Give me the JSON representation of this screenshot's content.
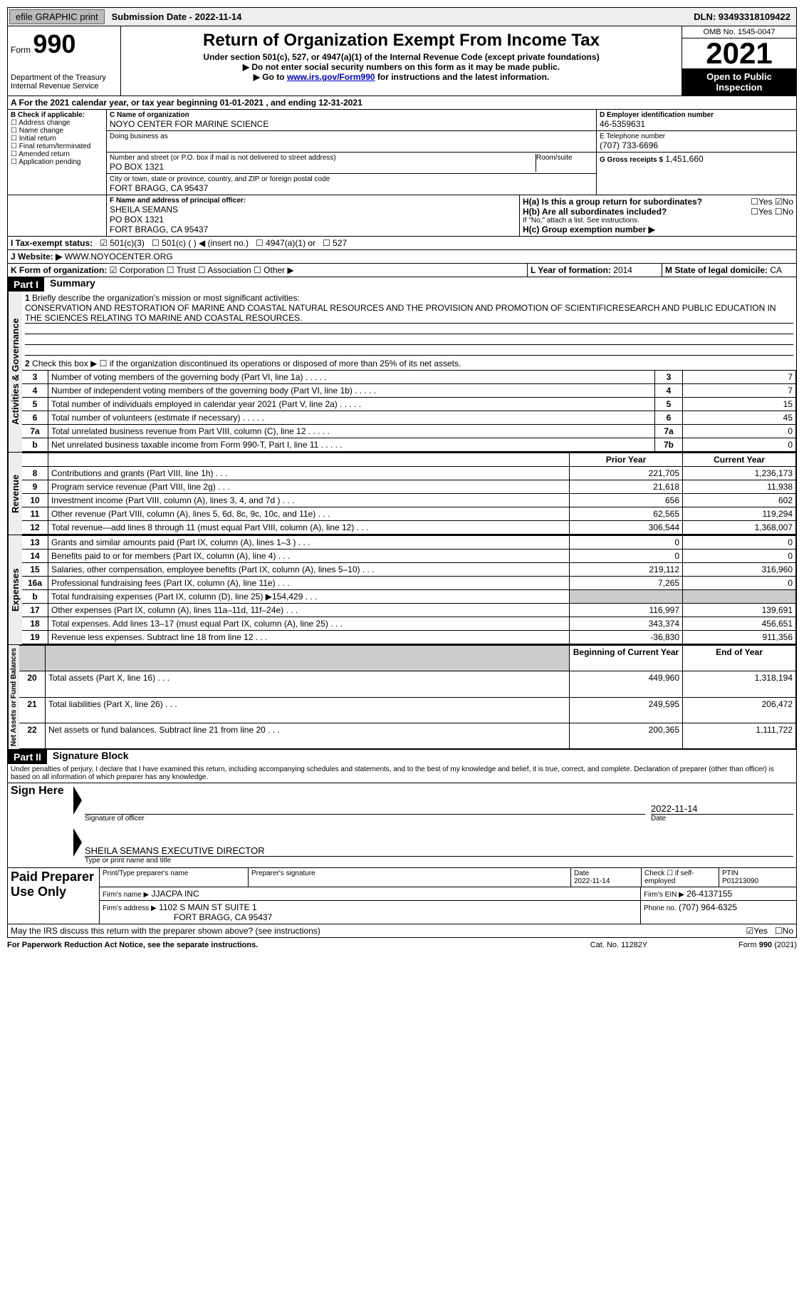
{
  "topbar": {
    "efile": "efile GRAPHIC print",
    "submission": "Submission Date - 2022-11-14",
    "dln": "DLN: 93493318109422"
  },
  "header": {
    "form_label": "Form",
    "form_num": "990",
    "dept": "Department of the Treasury\nInternal Revenue Service",
    "title": "Return of Organization Exempt From Income Tax",
    "sub1": "Under section 501(c), 527, or 4947(a)(1) of the Internal Revenue Code (except private foundations)",
    "sub2": "▶ Do not enter social security numbers on this form as it may be made public.",
    "sub3_pre": "▶ Go to ",
    "sub3_link": "www.irs.gov/Form990",
    "sub3_post": " for instructions and the latest information.",
    "omb": "OMB No. 1545-0047",
    "year": "2021",
    "open": "Open to Public Inspection"
  },
  "a": {
    "line": "A For the 2021 calendar year, or tax year beginning 01-01-2021    , and ending 12-31-2021"
  },
  "b": {
    "label": "B Check if applicable:",
    "opts": [
      "Address change",
      "Name change",
      "Initial return",
      "Final return/terminated",
      "Amended return",
      "Application pending"
    ]
  },
  "c": {
    "name_label": "C Name of organization",
    "name": "NOYO CENTER FOR MARINE SCIENCE",
    "dba_label": "Doing business as",
    "street_label": "Number and street (or P.O. box if mail is not delivered to street address)",
    "room_label": "Room/suite",
    "street": "PO BOX 1321",
    "city_label": "City or town, state or province, country, and ZIP or foreign postal code",
    "city": "FORT BRAGG, CA  95437"
  },
  "d": {
    "label": "D Employer identification number",
    "val": "46-5359631"
  },
  "e": {
    "label": "E Telephone number",
    "val": "(707) 733-6696"
  },
  "g": {
    "label": "G Gross receipts $",
    "val": "1,451,660"
  },
  "f": {
    "label": "F Name and address of principal officer:",
    "name": "SHEILA SEMANS",
    "street": "PO BOX 1321",
    "city": "FORT BRAGG, CA  95437"
  },
  "h": {
    "a": "H(a)  Is this a group return for subordinates?",
    "b": "H(b)  Are all subordinates included?",
    "note": "If \"No,\" attach a list. See instructions.",
    "c": "H(c)  Group exemption number ▶"
  },
  "i": {
    "label": "I    Tax-exempt status:",
    "o1": "501(c)(3)",
    "o2": "501(c) (  ) ◀ (insert no.)",
    "o3": "4947(a)(1) or",
    "o4": "527"
  },
  "j": {
    "label": "J    Website: ▶",
    "val": "WWW.NOYOCENTER.ORG"
  },
  "k": {
    "label": "K Form of organization:",
    "o1": "Corporation",
    "o2": "Trust",
    "o3": "Association",
    "o4": "Other ▶"
  },
  "l": {
    "label": "L Year of formation:",
    "val": "2014"
  },
  "m": {
    "label": "M State of legal domicile:",
    "val": "CA"
  },
  "part1": {
    "hdr": "Part I",
    "title": "Summary",
    "q1": "Briefly describe the organization's mission or most significant activities:",
    "mission": "CONSERVATION AND RESTORATION OF MARINE AND COASTAL NATURAL RESOURCES AND THE PROVISION AND PROMOTION OF SCIENTIFICRESEARCH AND PUBLIC EDUCATION IN THE SCIENCES RELATING TO MARINE AND COASTAL RESOURCES.",
    "q2": "Check this box ▶ ☐ if the organization discontinued its operations or disposed of more than 25% of its net assets.",
    "vlabels": {
      "gov": "Activities & Governance",
      "rev": "Revenue",
      "exp": "Expenses",
      "net": "Net Assets or Fund Balances"
    },
    "lines_gov": [
      {
        "n": "3",
        "d": "Number of voting members of the governing body (Part VI, line 1a)",
        "box": "3",
        "v": "7"
      },
      {
        "n": "4",
        "d": "Number of independent voting members of the governing body (Part VI, line 1b)",
        "box": "4",
        "v": "7"
      },
      {
        "n": "5",
        "d": "Total number of individuals employed in calendar year 2021 (Part V, line 2a)",
        "box": "5",
        "v": "15"
      },
      {
        "n": "6",
        "d": "Total number of volunteers (estimate if necessary)",
        "box": "6",
        "v": "45"
      },
      {
        "n": "7a",
        "d": "Total unrelated business revenue from Part VIII, column (C), line 12",
        "box": "7a",
        "v": "0"
      },
      {
        "n": "b",
        "d": "Net unrelated business taxable income from Form 990-T, Part I, line 11",
        "box": "7b",
        "v": "0"
      }
    ],
    "col_hdrs": {
      "py": "Prior Year",
      "cy": "Current Year",
      "boy": "Beginning of Current Year",
      "eoy": "End of Year"
    },
    "lines_rev": [
      {
        "n": "8",
        "d": "Contributions and grants (Part VIII, line 1h)",
        "py": "221,705",
        "cy": "1,236,173"
      },
      {
        "n": "9",
        "d": "Program service revenue (Part VIII, line 2g)",
        "py": "21,618",
        "cy": "11,938"
      },
      {
        "n": "10",
        "d": "Investment income (Part VIII, column (A), lines 3, 4, and 7d )",
        "py": "656",
        "cy": "602"
      },
      {
        "n": "11",
        "d": "Other revenue (Part VIII, column (A), lines 5, 6d, 8c, 9c, 10c, and 11e)",
        "py": "62,565",
        "cy": "119,294"
      },
      {
        "n": "12",
        "d": "Total revenue—add lines 8 through 11 (must equal Part VIII, column (A), line 12)",
        "py": "306,544",
        "cy": "1,368,007"
      }
    ],
    "lines_exp": [
      {
        "n": "13",
        "d": "Grants and similar amounts paid (Part IX, column (A), lines 1–3 )",
        "py": "0",
        "cy": "0"
      },
      {
        "n": "14",
        "d": "Benefits paid to or for members (Part IX, column (A), line 4)",
        "py": "0",
        "cy": "0"
      },
      {
        "n": "15",
        "d": "Salaries, other compensation, employee benefits (Part IX, column (A), lines 5–10)",
        "py": "219,112",
        "cy": "316,960"
      },
      {
        "n": "16a",
        "d": "Professional fundraising fees (Part IX, column (A), line 11e)",
        "py": "7,265",
        "cy": "0"
      },
      {
        "n": "b",
        "d": "Total fundraising expenses (Part IX, column (D), line 25) ▶154,429",
        "py": "grey",
        "cy": "grey"
      },
      {
        "n": "17",
        "d": "Other expenses (Part IX, column (A), lines 11a–11d, 11f–24e)",
        "py": "116,997",
        "cy": "139,691"
      },
      {
        "n": "18",
        "d": "Total expenses. Add lines 13–17 (must equal Part IX, column (A), line 25)",
        "py": "343,374",
        "cy": "456,651"
      },
      {
        "n": "19",
        "d": "Revenue less expenses. Subtract line 18 from line 12",
        "py": "-36,830",
        "cy": "911,356"
      }
    ],
    "lines_net": [
      {
        "n": "20",
        "d": "Total assets (Part X, line 16)",
        "py": "449,960",
        "cy": "1,318,194"
      },
      {
        "n": "21",
        "d": "Total liabilities (Part X, line 26)",
        "py": "249,595",
        "cy": "206,472"
      },
      {
        "n": "22",
        "d": "Net assets or fund balances. Subtract line 21 from line 20",
        "py": "200,365",
        "cy": "1,111,722"
      }
    ]
  },
  "part2": {
    "hdr": "Part II",
    "title": "Signature Block",
    "decl": "Under penalties of perjury, I declare that I have examined this return, including accompanying schedules and statements, and to the best of my knowledge and belief, it is true, correct, and complete. Declaration of preparer (other than officer) is based on all information of which preparer has any knowledge.",
    "sign_here": "Sign Here",
    "sig_officer": "Signature of officer",
    "sig_date_label": "Date",
    "sig_date": "2022-11-14",
    "type_name": "Type or print name and title",
    "officer": "SHEILA SEMANS EXECUTIVE DIRECTOR",
    "paid": "Paid Preparer Use Only",
    "p_name_label": "Print/Type preparer's name",
    "p_sig_label": "Preparer's signature",
    "p_date_label": "Date",
    "p_date": "2022-11-14",
    "p_check": "Check ☐ if self-employed",
    "ptin_label": "PTIN",
    "ptin": "P01213090",
    "firm_name_label": "Firm's name    ▶",
    "firm_name": "JJACPA INC",
    "firm_ein_label": "Firm's EIN ▶",
    "firm_ein": "26-4137155",
    "firm_addr_label": "Firm's address ▶",
    "firm_addr1": "1102 S MAIN ST SUITE 1",
    "firm_addr2": "FORT BRAGG, CA  95437",
    "phone_label": "Phone no.",
    "phone": "(707) 964-6325",
    "may": "May the IRS discuss this return with the preparer shown above? (see instructions)",
    "yes": "Yes",
    "no": "No"
  },
  "footer": {
    "pra": "For Paperwork Reduction Act Notice, see the separate instructions.",
    "cat": "Cat. No. 11282Y",
    "form": "Form 990 (2021)"
  }
}
